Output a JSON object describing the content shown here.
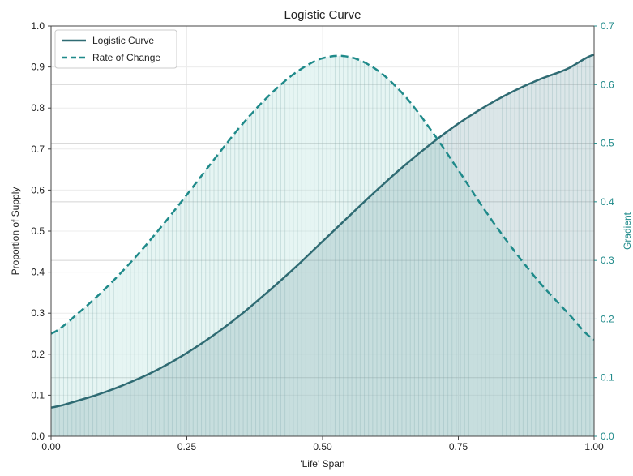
{
  "chart_data": {
    "type": "line",
    "title": "Logistic Curve",
    "xlabel": "'Life' Span",
    "ylabel": "Proportion of Supply",
    "y2label": "Gradient",
    "xlim": [
      0.0,
      1.0
    ],
    "ylim": [
      0.0,
      1.0
    ],
    "y2lim": [
      0.0,
      0.7
    ],
    "x_ticks": [
      "0.00",
      "0.25",
      "0.50",
      "0.75",
      "1.00"
    ],
    "y_ticks": [
      "0.0",
      "0.1",
      "0.2",
      "0.3",
      "0.4",
      "0.5",
      "0.6",
      "0.7",
      "0.8",
      "0.9",
      "1.0"
    ],
    "y2_ticks": [
      "0.0",
      "0.1",
      "0.2",
      "0.3",
      "0.4",
      "0.5",
      "0.6",
      "0.7"
    ],
    "grid": true,
    "legend_position": "top-left",
    "x": [
      0.0,
      0.05,
      0.1,
      0.15,
      0.2,
      0.25,
      0.3,
      0.35,
      0.4,
      0.45,
      0.5,
      0.55,
      0.6,
      0.65,
      0.7,
      0.75,
      0.8,
      0.85,
      0.9,
      0.95,
      1.0
    ],
    "series": [
      {
        "name": "Logistic Curve",
        "axis": "left",
        "style": "solid",
        "color": "#2f6b73",
        "values": [
          0.07,
          0.087,
          0.108,
          0.134,
          0.165,
          0.203,
          0.247,
          0.297,
          0.353,
          0.412,
          0.475,
          0.538,
          0.6,
          0.659,
          0.713,
          0.762,
          0.804,
          0.84,
          0.87,
          0.895,
          0.93
        ]
      },
      {
        "name": "Rate of Change",
        "axis": "right",
        "style": "dashed",
        "color": "#1f8a8a",
        "values": [
          0.175,
          0.21,
          0.252,
          0.3,
          0.354,
          0.412,
          0.472,
          0.53,
          0.58,
          0.62,
          0.645,
          0.647,
          0.625,
          0.582,
          0.522,
          0.454,
          0.384,
          0.32,
          0.262,
          0.212,
          0.165
        ]
      }
    ]
  }
}
